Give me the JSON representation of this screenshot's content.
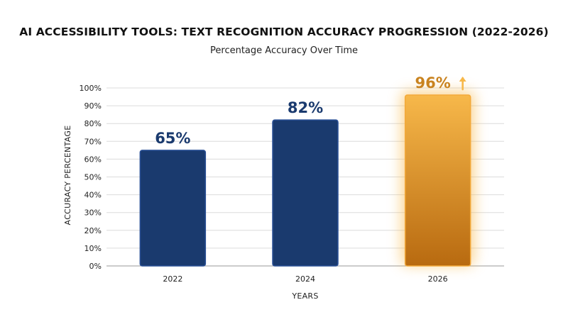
{
  "chart_data": {
    "type": "bar",
    "title": "AI ACCESSIBILITY TOOLS: TEXT RECOGNITION ACCURACY PROGRESSION (2022-2026)",
    "subtitle": "Percentage Accuracy Over Time",
    "xlabel": "YEARS",
    "ylabel": "ACCURACY PERCENTAGE",
    "categories": [
      "2022",
      "2024",
      "2026"
    ],
    "values": [
      65,
      82,
      96
    ],
    "data_labels": [
      "65%",
      "82%",
      "96%"
    ],
    "ylim": [
      0,
      100
    ],
    "yticks": [
      0,
      10,
      20,
      30,
      40,
      50,
      60,
      70,
      80,
      90,
      100
    ],
    "ytick_labels": [
      "0%",
      "10%",
      "20%",
      "30%",
      "40%",
      "50%",
      "60%",
      "70%",
      "80%",
      "90%",
      "100%"
    ],
    "grid": true,
    "highlight_index": 2,
    "highlight_icon": "arrow-up-icon",
    "colors": {
      "bar": "#1a3a6e",
      "bar_border": "#2a5096",
      "label": "#1a3a6e",
      "highlight_top": "#f7b84a",
      "highlight_bottom": "#b86a10",
      "highlight_label": "#c98320",
      "grid": "#dcdcdc"
    }
  }
}
